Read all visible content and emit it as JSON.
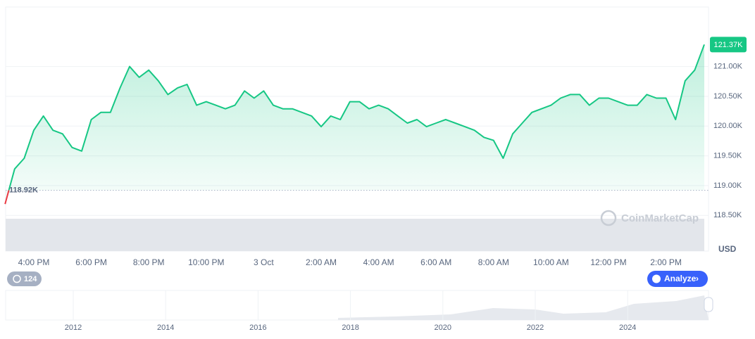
{
  "chart_data": {
    "type": "line",
    "categories": [
      null,
      null,
      null,
      "4:00 PM",
      null,
      null,
      null,
      null,
      null,
      "6:00 PM",
      null,
      null,
      null,
      null,
      null,
      "8:00 PM",
      null,
      null,
      null,
      null,
      null,
      "10:00 PM",
      null,
      null,
      null,
      null,
      null,
      "3 Oct",
      null,
      null,
      null,
      null,
      null,
      "2:00 AM",
      null,
      null,
      null,
      null,
      null,
      "4:00 AM",
      null,
      null,
      null,
      null,
      null,
      "6:00 AM",
      null,
      null,
      null,
      null,
      null,
      "8:00 AM",
      null,
      null,
      null,
      null,
      null,
      "10:00 AM",
      null,
      null,
      null,
      null,
      null,
      "12:00 PM",
      null,
      null,
      null,
      null,
      null,
      "2:00 PM",
      null,
      null,
      null,
      null
    ],
    "values": [
      118690,
      119280,
      119460,
      119930,
      120170,
      119930,
      119870,
      119640,
      119580,
      120110,
      120230,
      120230,
      120640,
      121000,
      120820,
      120940,
      120760,
      120530,
      120640,
      120700,
      120350,
      120410,
      120350,
      120290,
      120350,
      120590,
      120470,
      120590,
      120350,
      120290,
      120290,
      120230,
      120170,
      119990,
      120170,
      120110,
      120410,
      120410,
      120290,
      120350,
      120290,
      120170,
      120050,
      120110,
      119990,
      120050,
      120110,
      120050,
      119990,
      119930,
      119810,
      119760,
      119460,
      119870,
      120050,
      120230,
      120290,
      120350,
      120470,
      120530,
      120530,
      120350,
      120470,
      120470,
      120410,
      120350,
      120350,
      120530,
      120470,
      120470,
      120110,
      120760,
      120940,
      121370
    ],
    "color": "#16c784",
    "down_color": "#ea3943",
    "ylim": [
      117900,
      122000
    ],
    "yticks": [
      {
        "value": 118500,
        "label": "118.50K"
      },
      {
        "value": 119000,
        "label": "119.00K"
      },
      {
        "value": 119500,
        "label": "119.50K"
      },
      {
        "value": 120000,
        "label": "120.00K"
      },
      {
        "value": 120500,
        "label": "120.50K"
      },
      {
        "value": 121000,
        "label": "121.00K"
      }
    ],
    "y_unit": "USD",
    "grid": true,
    "baseline": {
      "value": 118920,
      "label": "118.92K"
    },
    "current_price": {
      "value": 121370,
      "label": "121.37K"
    },
    "history_count": 124,
    "analyze_button": "Analyze",
    "watermark": "CoinMarketCap",
    "navigator_years": [
      "2012",
      "2014",
      "2016",
      "2018",
      "2020",
      "2022",
      "2024"
    ]
  }
}
